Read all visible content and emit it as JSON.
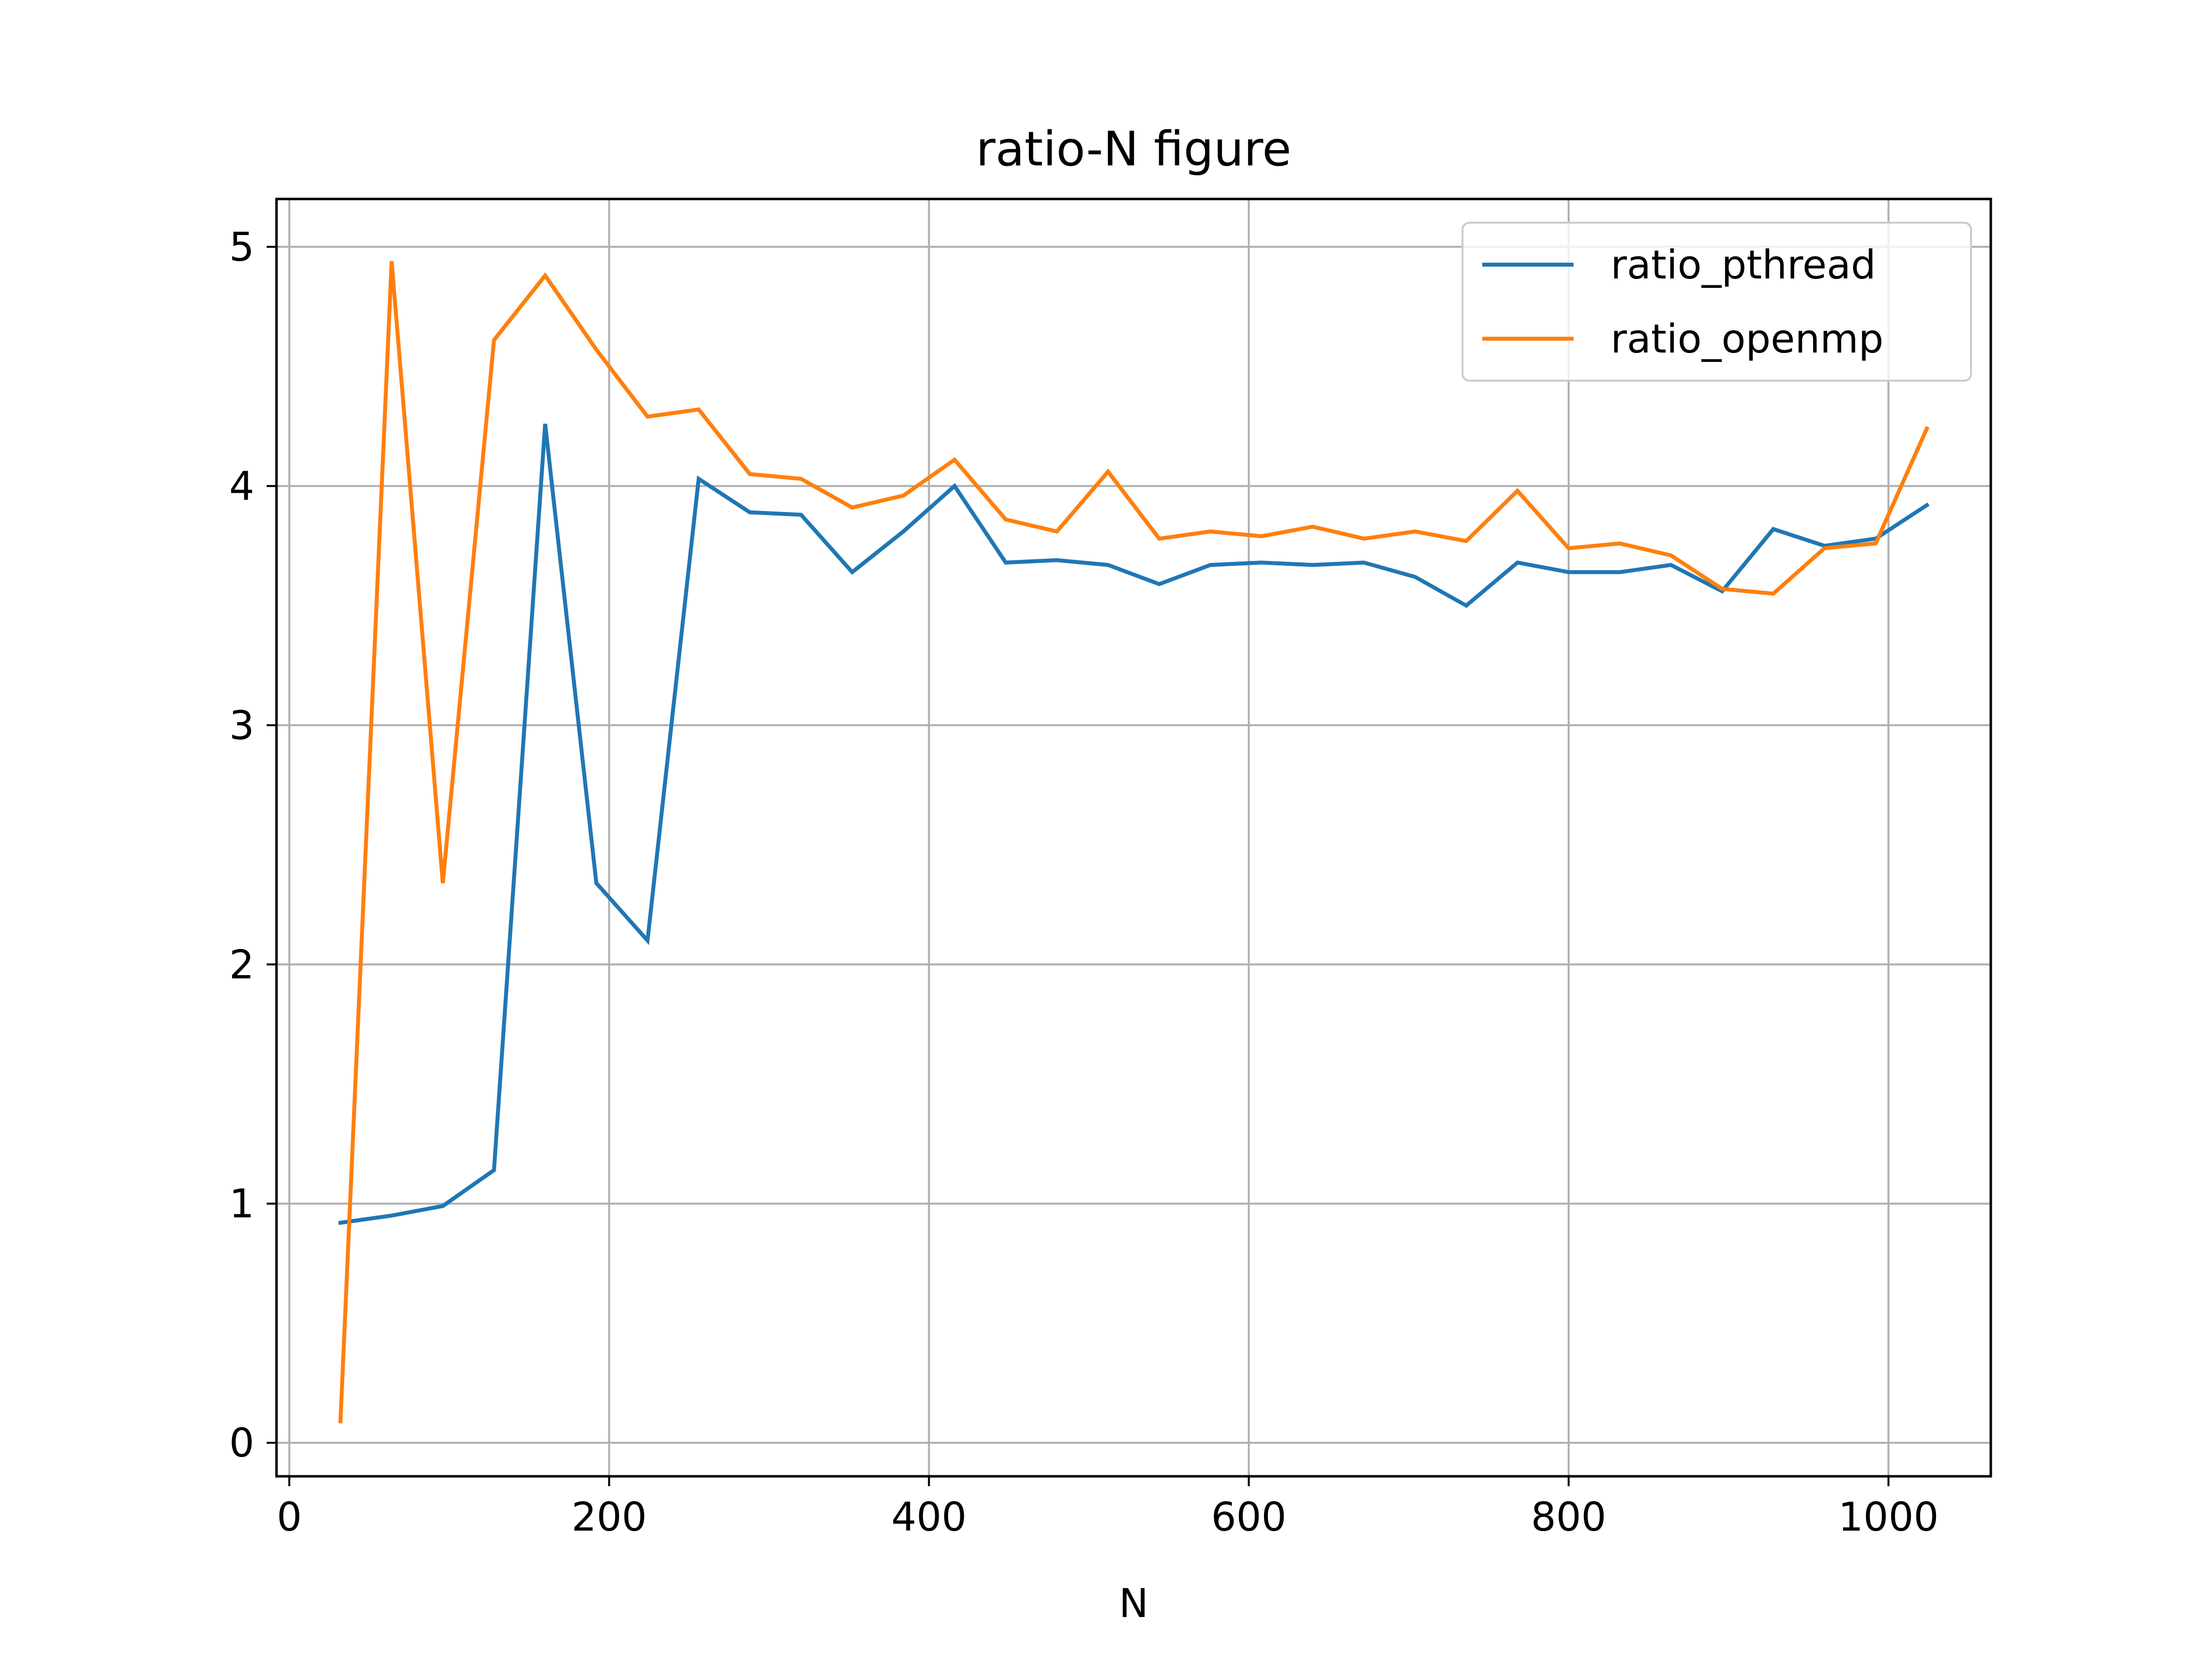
{
  "chart_data": {
    "type": "line",
    "title": "ratio-N figure",
    "xlabel": "N",
    "ylabel": "",
    "xlim": [
      -8,
      1064
    ],
    "ylim": [
      -0.14,
      5.2
    ],
    "xticks": [
      0,
      200,
      400,
      600,
      800,
      1000
    ],
    "yticks": [
      0,
      1,
      2,
      3,
      4,
      5
    ],
    "grid": true,
    "legend_position": "top-right",
    "x": [
      32,
      64,
      96,
      128,
      160,
      192,
      224,
      256,
      288,
      320,
      352,
      384,
      416,
      448,
      480,
      512,
      544,
      576,
      608,
      640,
      672,
      704,
      736,
      768,
      800,
      832,
      864,
      896,
      928,
      960,
      992,
      1024
    ],
    "series": [
      {
        "name": "ratio_pthread",
        "color": "#1f77b4",
        "values": [
          0.92,
          0.95,
          0.99,
          1.14,
          4.26,
          2.34,
          2.1,
          4.03,
          3.89,
          3.88,
          3.64,
          3.81,
          4.0,
          3.68,
          3.69,
          3.67,
          3.59,
          3.67,
          3.68,
          3.67,
          3.68,
          3.62,
          3.5,
          3.68,
          3.64,
          3.64,
          3.67,
          3.56,
          3.82,
          3.75,
          3.78,
          3.92
        ]
      },
      {
        "name": "ratio_openmp",
        "color": "#ff7f0e",
        "values": [
          0.09,
          4.94,
          2.34,
          4.61,
          4.88,
          4.57,
          4.29,
          4.32,
          4.05,
          4.03,
          3.91,
          3.96,
          4.11,
          3.86,
          3.81,
          4.06,
          3.78,
          3.81,
          3.79,
          3.83,
          3.78,
          3.81,
          3.77,
          3.98,
          3.74,
          3.76,
          3.71,
          3.57,
          3.55,
          3.74,
          3.76,
          4.24
        ]
      }
    ]
  }
}
